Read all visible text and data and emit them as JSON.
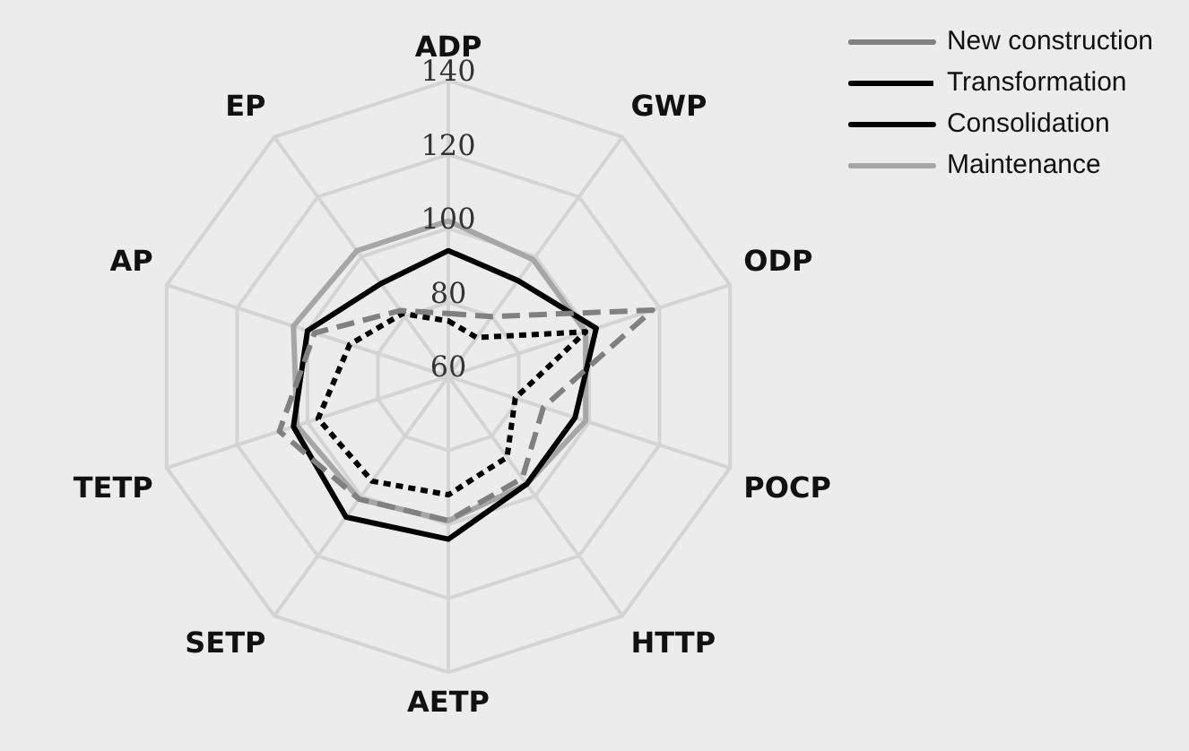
{
  "chart_data": {
    "type": "radar",
    "categories": [
      "ADP",
      "GWP",
      "ODP",
      "POCP",
      "HTTP",
      "AETP",
      "SETP",
      "TETP",
      "AP",
      "EP"
    ],
    "series": [
      {
        "name": "New construction",
        "color": "#808080",
        "line_style": "dashed",
        "values": [
          77,
          80,
          118,
          87,
          94,
          99,
          101,
          108,
          98,
          82
        ]
      },
      {
        "name": "Transformation",
        "color": "#000000",
        "line_style": "dotted",
        "values": [
          75,
          73,
          99,
          79,
          87,
          92,
          95,
          97,
          88,
          81
        ]
      },
      {
        "name": "Consolidation",
        "color": "#000000",
        "line_style": "solid",
        "values": [
          94,
          92,
          102,
          96,
          96,
          104,
          107,
          104,
          100,
          91
        ]
      },
      {
        "name": "Maintenance",
        "color": "#a6a6a6",
        "line_style": "solid",
        "values": [
          102,
          99,
          99,
          99,
          96,
          99,
          101,
          103,
          104,
          102
        ]
      }
    ],
    "ylim": [
      60,
      140
    ],
    "yticks": [
      60,
      80,
      100,
      120,
      140
    ],
    "grid": true,
    "legend": "top right",
    "marker": "none"
  }
}
